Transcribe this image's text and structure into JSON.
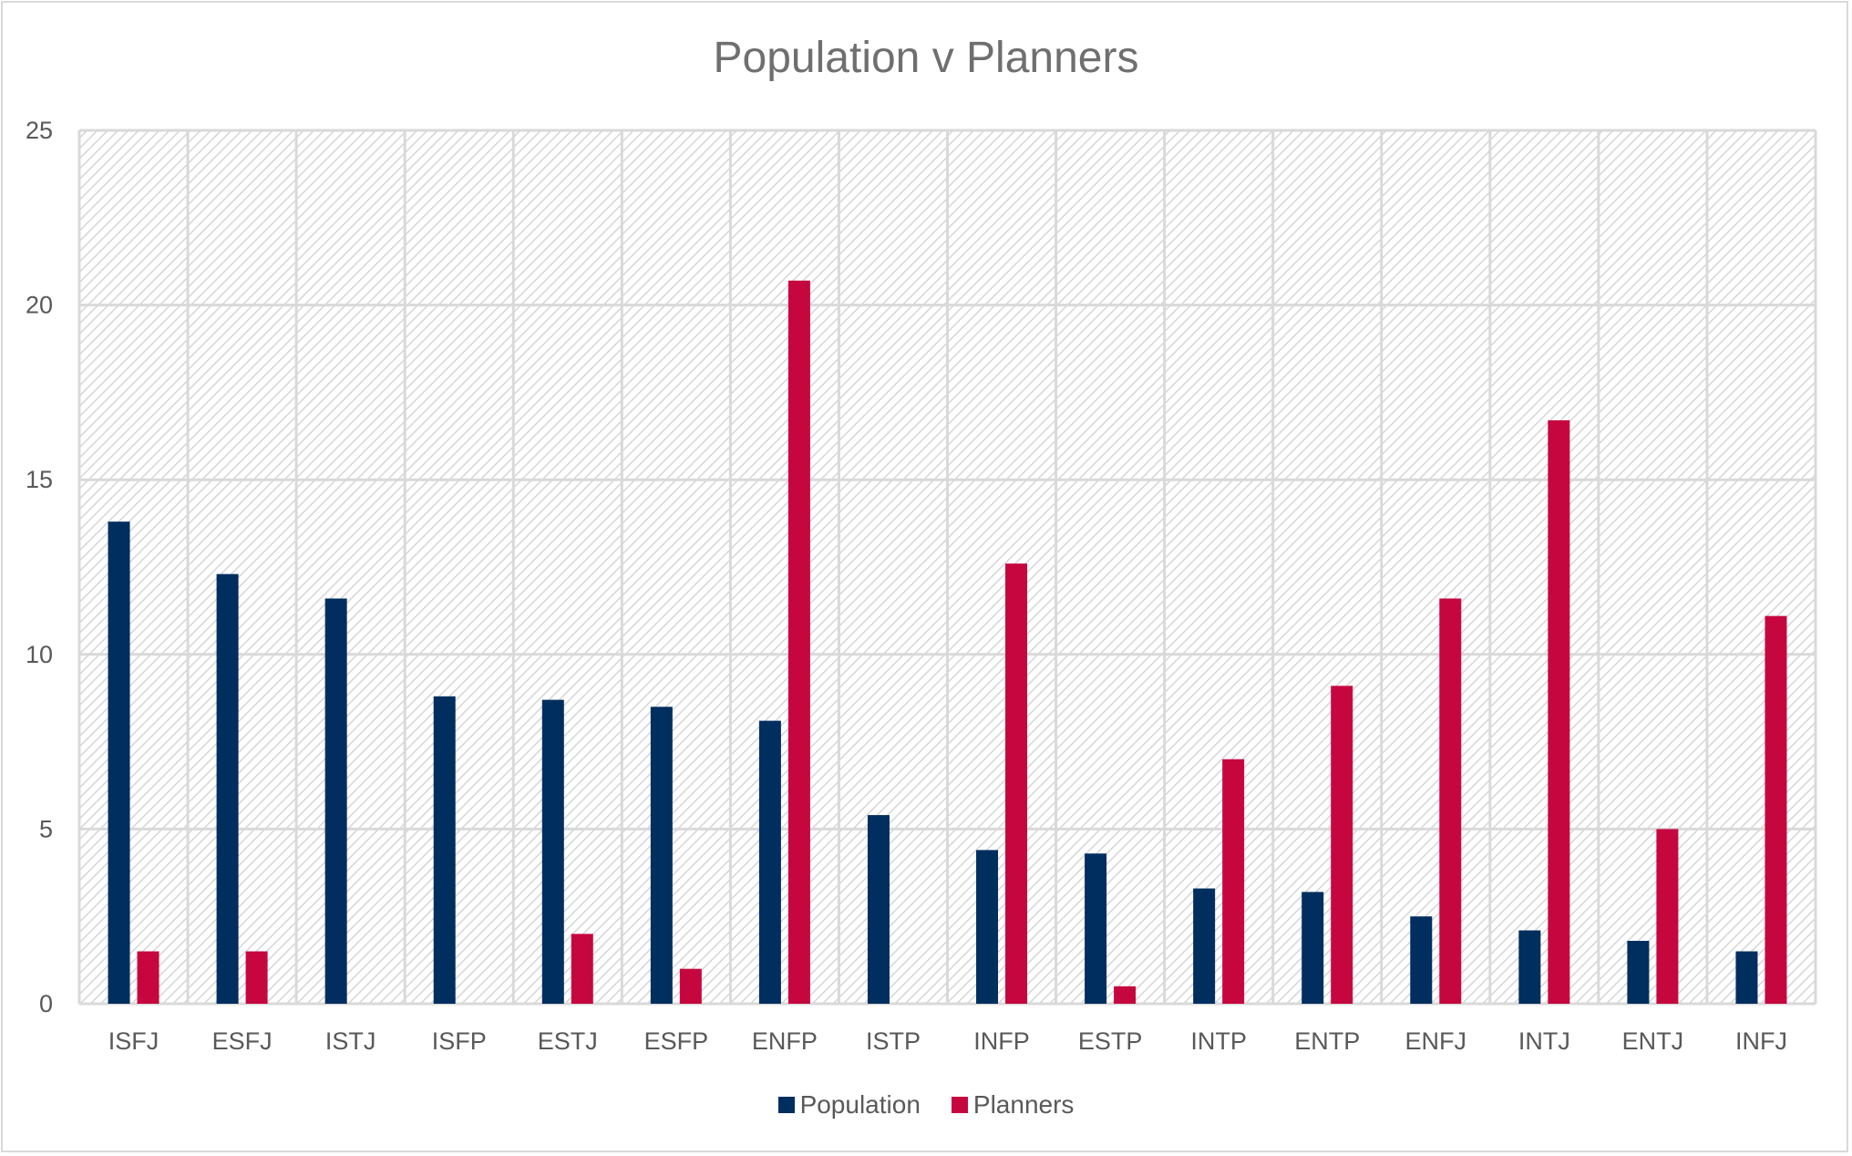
{
  "chart_data": {
    "type": "bar",
    "title": "Population v Planners",
    "xlabel": "",
    "ylabel": "",
    "ylim": [
      0,
      25
    ],
    "yticks": [
      0,
      5,
      10,
      15,
      20,
      25
    ],
    "grid": true,
    "legend_position": "bottom",
    "categories": [
      "ISFJ",
      "ESFJ",
      "ISTJ",
      "ISFP",
      "ESTJ",
      "ESFP",
      "ENFP",
      "ISTP",
      "INFP",
      "ESTP",
      "INTP",
      "ENTP",
      "ENFJ",
      "INTJ",
      "ENTJ",
      "INFJ"
    ],
    "series": [
      {
        "name": "Population",
        "color": "#002e5f",
        "values": [
          13.8,
          12.3,
          11.6,
          8.8,
          8.7,
          8.5,
          8.1,
          5.4,
          4.4,
          4.3,
          3.3,
          3.2,
          2.5,
          2.1,
          1.8,
          1.5
        ]
      },
      {
        "name": "Planners",
        "color": "#c6073f",
        "values": [
          1.5,
          1.5,
          0,
          0,
          2.0,
          1.0,
          20.7,
          0,
          12.6,
          0.5,
          7.0,
          9.1,
          11.6,
          16.7,
          5.0,
          11.1
        ]
      }
    ]
  }
}
